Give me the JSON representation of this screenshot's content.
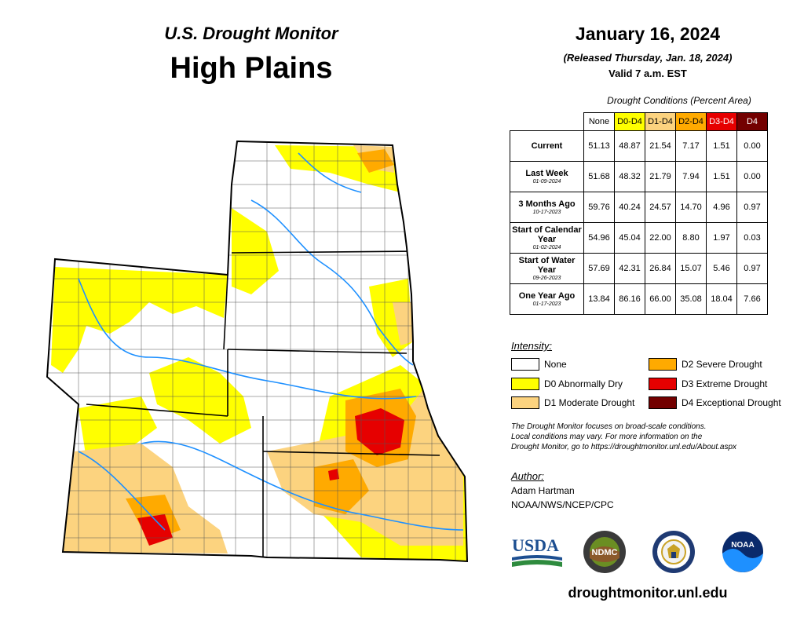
{
  "header": {
    "product": "U.S. Drought Monitor",
    "region": "High Plains",
    "date": "January 16, 2024",
    "released": "(Released Thursday, Jan. 18, 2024)",
    "valid": "Valid 7 a.m. EST"
  },
  "table": {
    "caption": "Drought Conditions (Percent Area)",
    "columns": [
      {
        "label": "None",
        "color": "#ffffff",
        "text_color": "#000000"
      },
      {
        "label": "D0-D4",
        "color": "#ffff00",
        "text_color": "#000000"
      },
      {
        "label": "D1-D4",
        "color": "#fcd37f",
        "text_color": "#000000"
      },
      {
        "label": "D2-D4",
        "color": "#ffaa00",
        "text_color": "#000000"
      },
      {
        "label": "D3-D4",
        "color": "#e60000",
        "text_color": "#ffffff"
      },
      {
        "label": "D4",
        "color": "#730000",
        "text_color": "#ffffff"
      }
    ],
    "rows": [
      {
        "label": "Current",
        "sub": "",
        "values": [
          "51.13",
          "48.87",
          "21.54",
          "7.17",
          "1.51",
          "0.00"
        ]
      },
      {
        "label": "Last Week",
        "sub": "01-09-2024",
        "values": [
          "51.68",
          "48.32",
          "21.79",
          "7.94",
          "1.51",
          "0.00"
        ]
      },
      {
        "label": "3 Months Ago",
        "sub": "10-17-2023",
        "values": [
          "59.76",
          "40.24",
          "24.57",
          "14.70",
          "4.96",
          "0.97"
        ]
      },
      {
        "label": "Start of Calendar Year",
        "sub": "01-02-2024",
        "values": [
          "54.96",
          "45.04",
          "22.00",
          "8.80",
          "1.97",
          "0.03"
        ]
      },
      {
        "label": "Start of Water Year",
        "sub": "09-26-2023",
        "values": [
          "57.69",
          "42.31",
          "26.84",
          "15.07",
          "5.46",
          "0.97"
        ]
      },
      {
        "label": "One Year Ago",
        "sub": "01-17-2023",
        "values": [
          "13.84",
          "86.16",
          "66.00",
          "35.08",
          "18.04",
          "7.66"
        ]
      }
    ]
  },
  "legend": {
    "title": "Intensity:",
    "items": [
      {
        "label": "None",
        "color": "#ffffff"
      },
      {
        "label": "D0 Abnormally Dry",
        "color": "#ffff00"
      },
      {
        "label": "D1 Moderate Drought",
        "color": "#fcd37f"
      },
      {
        "label": "D2 Severe Drought",
        "color": "#ffaa00"
      },
      {
        "label": "D3 Extreme Drought",
        "color": "#e60000"
      },
      {
        "label": "D4 Exceptional Drought",
        "color": "#730000"
      }
    ]
  },
  "note": {
    "line1": "The Drought Monitor focuses on broad-scale conditions.",
    "line2": "Local conditions may vary. For more information on the",
    "line3": "Drought Monitor, go to https://droughtmonitor.unl.edu/About.aspx"
  },
  "author": {
    "title": "Author:",
    "name": "Adam Hartman",
    "org": "NOAA/NWS/NCEP/CPC"
  },
  "logos": {
    "usda": "USDA",
    "ndmc": "NDMC",
    "noaa": "NOAA"
  },
  "footer": {
    "url": "droughtmonitor.unl.edu"
  }
}
